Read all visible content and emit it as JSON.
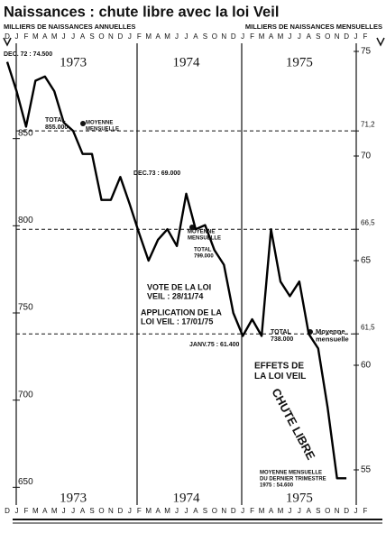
{
  "chart_data": {
    "type": "line",
    "title": "Naissances : chute libre avec la loi Veil",
    "y_label": "MILLIERS DE NAISSANCES ANNUELLES",
    "y2_label": "MILLIERS DE NAISSANCES MENSUELLES",
    "years": [
      "1973",
      "1974",
      "1975"
    ],
    "categories": [
      "D",
      "J",
      "F",
      "M",
      "A",
      "M",
      "J",
      "J",
      "A",
      "S",
      "O",
      "N",
      "D",
      "J",
      "F",
      "M",
      "A",
      "M",
      "J",
      "J",
      "A",
      "S",
      "O",
      "N",
      "D",
      "J",
      "F",
      "M",
      "A",
      "M",
      "J",
      "J",
      "A",
      "S",
      "O",
      "N",
      "D",
      "J",
      "F"
    ],
    "series": [
      {
        "color": "#000000",
        "axis": "y2",
        "values": [
          74.5,
          73.1,
          71.4,
          73.6,
          73.8,
          73.1,
          71.6,
          71.2,
          70.1,
          70.1,
          67.9,
          67.9,
          69.0,
          67.7,
          66.3,
          65.0,
          66.0,
          66.5,
          65.7,
          68.2,
          66.5,
          66.7,
          65.5,
          64.8,
          62.5,
          61.4,
          62.2,
          61.4,
          66.5,
          64.0,
          63.3,
          64.0,
          61.5,
          60.8,
          58.0,
          54.6,
          54.6,
          null,
          null
        ]
      }
    ],
    "ylim": [
      642,
      906
    ],
    "yticks": [
      650,
      700,
      750,
      800,
      850
    ],
    "y2lim": [
      53.5,
      75.5
    ],
    "y2ticks": [
      55,
      60,
      {
        "value": 61.5,
        "label": "61,5"
      },
      65,
      {
        "value": 66.5,
        "label": "66,5"
      },
      70,
      {
        "value": 71.2,
        "label": "71,2"
      },
      75
    ],
    "reference_lines": [
      71.2,
      66.5,
      61.5
    ],
    "annotations": [
      [
        "DEC. 72 : 74.500"
      ],
      [
        "TOTAL",
        "855.000"
      ],
      [
        "MOYENNE",
        "MENSUELLE"
      ],
      [
        "DEC.73 : 69.000"
      ],
      [
        "MOYENNE",
        "MENSUELLE"
      ],
      [
        "TOTAL",
        "799.000"
      ],
      [
        "VOTE DE LA LOI",
        "VEIL : 28/11/74"
      ],
      [
        "APPLICATION DE LA",
        "LOI VEIL : 17/01/75"
      ],
      [
        "JANV.75 : 61.400"
      ],
      [
        "TOTAL",
        "738.000"
      ],
      [
        "Moyenne",
        "mensuelle"
      ],
      [
        "EFFETS DE",
        "LA LOI VEIL"
      ],
      [
        "CHUTE LIBRE"
      ],
      [
        "MOYENNE MENSUELLE",
        "DU DERNIER TRIMESTRE",
        "1975 : 54.600"
      ]
    ]
  }
}
